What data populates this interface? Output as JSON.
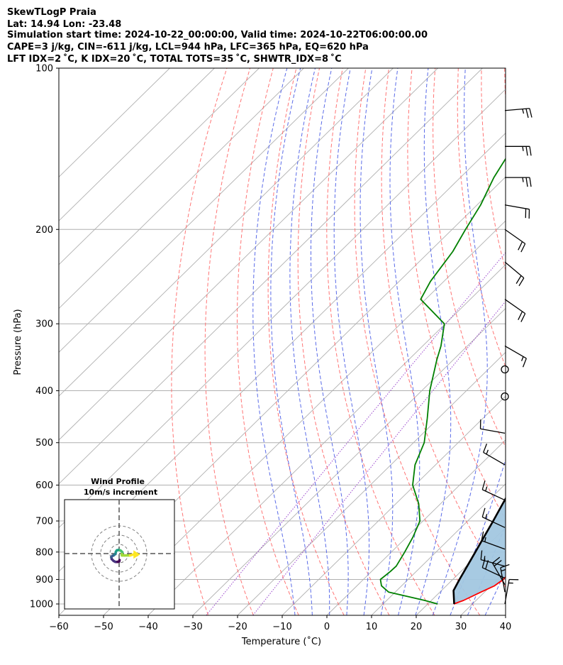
{
  "header": {
    "line1": "SkewTLogP Praia",
    "line2": "Lat: 14.94   Lon: -23.48",
    "line3": "Simulation start time: 2024-10-22_00:00:00, Valid time: 2024-10-22T06:00:00.00",
    "line4": "CAPE=3 j/kg, CIN=-611 j/kg, LCL=944 hPa, LFC=365 hPa, EQ=620 hPa",
    "line5": "LFT IDX=2 ˚C, K IDX=20 ˚C, TOTAL TOTS=35 ˚C, SHWTR_IDX=8 ˚C"
  },
  "colors": {
    "temperature": "#ff0000",
    "dewpoint": "#008000",
    "parcel": "#000000",
    "cape_fill": "#a2c7e0",
    "dry_adiabat": "#ff6666",
    "moist_adiabat": "#5a6be8",
    "mixing_ratio": "#9944cc",
    "isotherm": "#b0b0b0",
    "isobar": "#b0b0b0"
  },
  "chart_data": [
    {
      "type": "line",
      "subtype": "skew-t log-p",
      "xlabel": "Temperature (˚C)",
      "ylabel": "Pressure (hPa)",
      "xlim": [
        -60,
        40
      ],
      "ylim": [
        1050,
        100
      ],
      "yscale": "log",
      "grid": true,
      "xticks": [
        -60,
        -50,
        -40,
        -30,
        -20,
        -10,
        0,
        10,
        20,
        30,
        40
      ],
      "yticks": [
        100,
        200,
        300,
        400,
        500,
        600,
        700,
        800,
        900,
        1000
      ],
      "series": [
        {
          "role": "temperature",
          "p": [
            1000,
            985,
            950,
            925,
            900,
            870,
            850,
            800,
            750,
            700,
            650,
            600,
            550,
            500,
            450,
            400,
            350,
            330,
            300,
            270,
            250,
            220,
            200,
            180,
            160,
            145,
            130,
            115,
            100
          ],
          "t": [
            25.8,
            27.2,
            29.2,
            30.8,
            31.3,
            31.2,
            30.8,
            28.9,
            26.7,
            24.3,
            21.8,
            19.3,
            15.9,
            11.6,
            6.7,
            1.1,
            -5.3,
            -8.3,
            -12.9,
            -18.1,
            -21.9,
            -28.9,
            -33.4,
            -37.7,
            -41.4,
            -42.8,
            -41.2,
            -37.8,
            -33.2
          ]
        },
        {
          "role": "dewpoint",
          "p": [
            1000,
            985,
            950,
            925,
            900,
            870,
            850,
            800,
            750,
            700,
            650,
            600,
            550,
            500,
            450,
            400,
            350,
            330,
            300,
            270,
            250,
            220,
            200,
            180,
            160,
            145,
            130,
            115,
            100
          ],
          "t": [
            22.2,
            18.5,
            8.5,
            5.5,
            3.8,
            4.2,
            4.3,
            3.0,
            1.4,
            -0.7,
            -4.9,
            -10.5,
            -14.6,
            -17.6,
            -22.5,
            -28.2,
            -33.7,
            -35.9,
            -40.2,
            -51.1,
            -53.0,
            -54.8,
            -57.0,
            -59.2,
            -62.5,
            -64.5,
            -63.8,
            -61.5,
            -58.0
          ]
        },
        {
          "role": "parcel",
          "p": [
            1000,
            944,
            900,
            850,
            800,
            750,
            700,
            650,
            620,
            600,
            550,
            500,
            450,
            400,
            365,
            350,
            300,
            250,
            200,
            180,
            150,
            130,
            115,
            100
          ],
          "t": [
            25.9,
            22.7,
            21.5,
            20.2,
            18.8,
            17.3,
            15.7,
            13.9,
            12.8,
            12.0,
            9.8,
            7.1,
            3.9,
            -0.1,
            -3.5,
            -5.1,
            -11.7,
            -20.7,
            -32.3,
            -37.8,
            -47.8,
            -56.0,
            -63.0,
            -71.0
          ]
        }
      ]
    },
    {
      "type": "line",
      "subtype": "hodograph",
      "title": "Wind Profile",
      "subtitle": "10m/s increment",
      "rings_ms": [
        10,
        20,
        30
      ],
      "u": [
        0.5,
        0.0,
        -2.0,
        -4.0,
        -6.0,
        -8.0,
        -8.5,
        -7.5,
        -6.0,
        -5.0,
        -4.0,
        -3.5,
        -2.5,
        -0.5,
        1.0,
        2.0,
        3.5,
        3.0,
        3.0,
        6.0,
        12.0,
        17.0,
        19.0
      ],
      "v": [
        -7.0,
        -8.5,
        -9.0,
        -9.0,
        -8.0,
        -6.0,
        -4.0,
        -2.5,
        -2.0,
        -1.0,
        -0.5,
        2.0,
        3.5,
        4.0,
        3.5,
        3.0,
        1.5,
        -0.5,
        -2.0,
        -2.0,
        -2.0,
        -0.5,
        -1.0
      ]
    },
    {
      "type": "barbs",
      "subtype": "wind barbs",
      "units": "kt",
      "barbs": [
        {
          "p": 120,
          "speed_kt": 25,
          "dir_deg": 85
        },
        {
          "p": 140,
          "speed_kt": 25,
          "dir_deg": 90
        },
        {
          "p": 160,
          "speed_kt": 25,
          "dir_deg": 90
        },
        {
          "p": 180,
          "speed_kt": 20,
          "dir_deg": 100
        },
        {
          "p": 200,
          "speed_kt": 20,
          "dir_deg": 125
        },
        {
          "p": 230,
          "speed_kt": 20,
          "dir_deg": 130
        },
        {
          "p": 270,
          "speed_kt": 20,
          "dir_deg": 125
        },
        {
          "p": 330,
          "speed_kt": 15,
          "dir_deg": 120
        },
        {
          "p": 365,
          "speed_kt": 0,
          "dir_deg": 0
        },
        {
          "p": 410,
          "speed_kt": 0,
          "dir_deg": 0
        },
        {
          "p": 480,
          "speed_kt": 10,
          "dir_deg": 280
        },
        {
          "p": 550,
          "speed_kt": 15,
          "dir_deg": 300
        },
        {
          "p": 640,
          "speed_kt": 15,
          "dir_deg": 295
        },
        {
          "p": 720,
          "speed_kt": 15,
          "dir_deg": 295
        },
        {
          "p": 790,
          "speed_kt": 15,
          "dir_deg": 290
        },
        {
          "p": 850,
          "speed_kt": 15,
          "dir_deg": 285
        },
        {
          "p": 895,
          "speed_kt": 20,
          "dir_deg": 295
        },
        {
          "p": 920,
          "speed_kt": 20,
          "dir_deg": 330
        },
        {
          "p": 950,
          "speed_kt": 15,
          "dir_deg": 350
        },
        {
          "p": 1000,
          "speed_kt": 15,
          "dir_deg": 10
        }
      ]
    }
  ]
}
